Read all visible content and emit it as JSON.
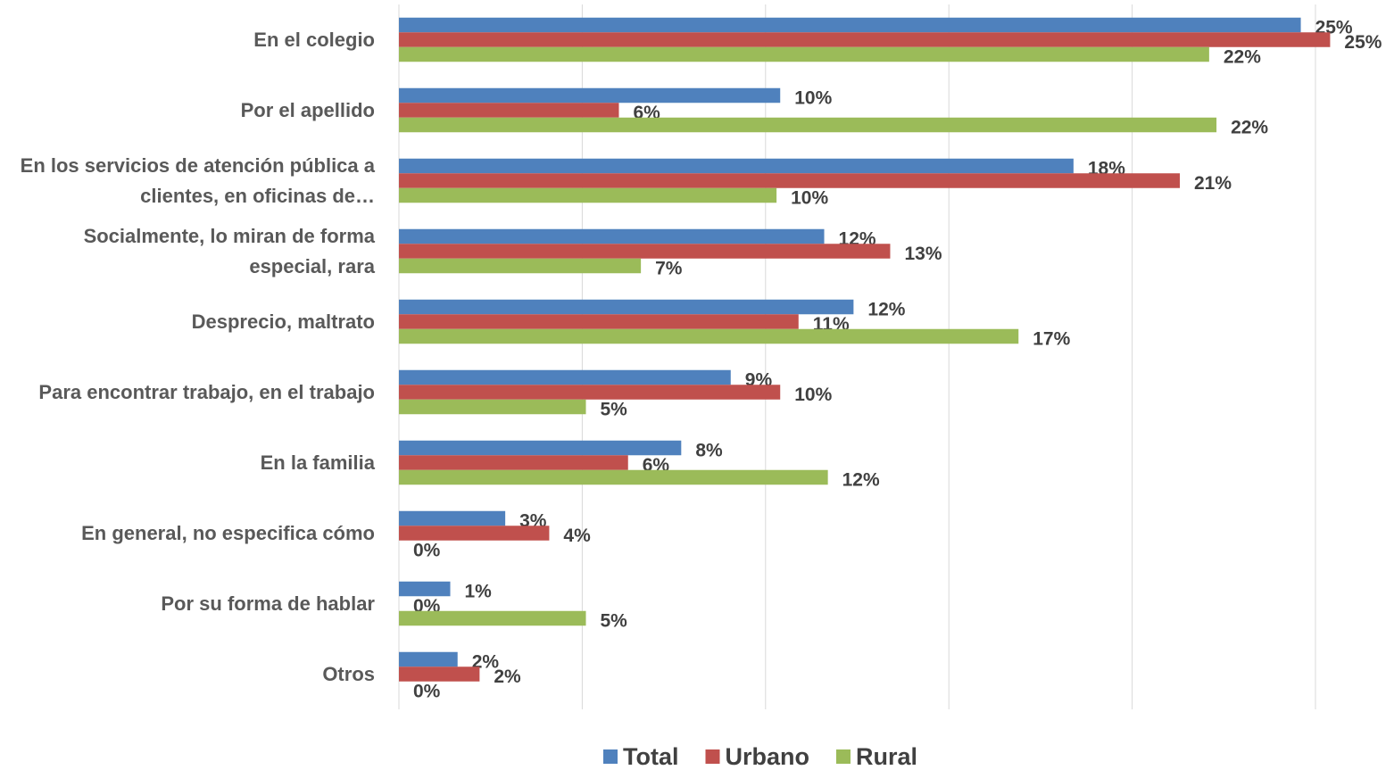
{
  "chart_data": {
    "type": "bar",
    "orientation": "horizontal",
    "categories": [
      "En el colegio",
      "Por el apellido",
      "En los servicios de atención pública a clientes, en oficinas de…",
      "Socialmente, lo miran de forma especial, rara",
      "Desprecio, maltrato",
      "Para encontrar trabajo, en el trabajo",
      "En la familia",
      "En general, no especifica cómo",
      "Por su forma de hablar",
      "Otros"
    ],
    "series": [
      {
        "name": "Total",
        "color": "#4f81bd",
        "values": [
          24.6,
          10.4,
          18.4,
          11.6,
          12.4,
          9.05,
          7.7,
          2.9,
          1.4,
          1.6
        ],
        "value_labels": [
          "25%",
          "10%",
          "18%",
          "12%",
          "12%",
          "9%",
          "8%",
          "3%",
          "1%",
          "2%"
        ]
      },
      {
        "name": "Urbano",
        "color": "#c0504d",
        "values": [
          25.4,
          6.0,
          21.3,
          13.4,
          10.9,
          10.4,
          6.25,
          4.1,
          0,
          2.2
        ],
        "value_labels": [
          "25%",
          "6%",
          "21%",
          "13%",
          "11%",
          "10%",
          "6%",
          "4%",
          "0%",
          "2%"
        ]
      },
      {
        "name": "Rural",
        "color": "#9bbb59",
        "values": [
          22.1,
          22.3,
          10.3,
          6.6,
          16.9,
          5.1,
          11.7,
          0,
          5.1,
          0
        ],
        "value_labels": [
          "22%",
          "22%",
          "10%",
          "7%",
          "17%",
          "5%",
          "12%",
          "0%",
          "5%",
          "0%"
        ]
      }
    ],
    "xlim": [
      0,
      25
    ],
    "xticks": [
      0,
      5,
      10,
      15,
      20,
      25
    ],
    "grid": true,
    "legend": "bottom"
  }
}
